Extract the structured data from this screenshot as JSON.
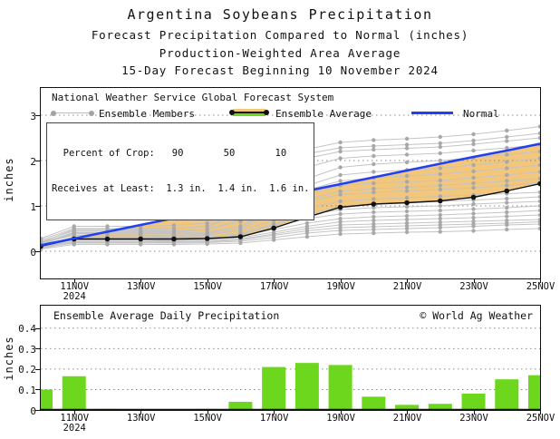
{
  "header": {
    "title1": "Argentina Soybeans Precipitation",
    "title2": "Forecast Precipitation Compared to Normal (inches)",
    "title3": "Production-Weighted Area Average",
    "title4": "15-Day Forecast Beginning 10 November 2024"
  },
  "main_chart": {
    "source_line": "National Weather Service Global Forecast System",
    "legend": {
      "members_label": "Ensemble Members",
      "average_label": "Ensemble Average",
      "normal_label": "Normal"
    },
    "crop_box": {
      "line1": "  Percent of Crop:   90       50       10",
      "line2": "Receives at Least:  1.3 in.  1.4 in.  1.6 in."
    },
    "ylabel": "inches"
  },
  "footer_chart": {
    "title": "Ensemble Average Daily Precipitation",
    "copyright": "© World Ag Weather",
    "ylabel": "inches"
  },
  "colors": {
    "band_fill": "#F3C77B",
    "bar_green": "#6CD71D",
    "normal_blue": "#2340EE",
    "member_line": "#c4c4c4",
    "member_dot": "#a8a8a8",
    "grid": "#8a8a8a",
    "ink": "#111111"
  },
  "chart_data": [
    {
      "type": "line",
      "x_days": [
        "10NOV",
        "11NOV",
        "12NOV",
        "13NOV",
        "14NOV",
        "15NOV",
        "16NOV",
        "17NOV",
        "18NOV",
        "19NOV",
        "20NOV",
        "21NOV",
        "22NOV",
        "23NOV",
        "24NOV",
        "25NOV"
      ],
      "x_tick_days": [
        1,
        3,
        5,
        7,
        9,
        11,
        13,
        15
      ],
      "x_tick_labels": [
        "11NOV",
        "13NOV",
        "15NOV",
        "17NOV",
        "19NOV",
        "21NOV",
        "23NOV",
        "25NOV"
      ],
      "year_label": "2024",
      "ylabel": "inches",
      "ylim": [
        -0.6,
        3.6
      ],
      "yticks": [
        0,
        1,
        2,
        3
      ],
      "grid": true,
      "legend_position": "top-inside",
      "series": [
        {
          "name": "Ensemble Average",
          "values": [
            0.11,
            0.27,
            0.27,
            0.27,
            0.27,
            0.28,
            0.32,
            0.51,
            0.75,
            0.97,
            1.04,
            1.07,
            1.11,
            1.19,
            1.33,
            1.49
          ]
        },
        {
          "name": "Normal",
          "values": [
            0.13,
            0.28,
            0.43,
            0.58,
            0.73,
            0.88,
            1.03,
            1.18,
            1.33,
            1.48,
            1.63,
            1.78,
            1.93,
            2.08,
            2.22,
            2.37
          ]
        }
      ],
      "members": [
        [
          0.05,
          0.15,
          0.15,
          0.15,
          0.15,
          0.16,
          0.18,
          0.25,
          0.32,
          0.38,
          0.4,
          0.42,
          0.43,
          0.45,
          0.48,
          0.5
        ],
        [
          0.08,
          0.18,
          0.18,
          0.18,
          0.18,
          0.19,
          0.22,
          0.3,
          0.4,
          0.46,
          0.48,
          0.5,
          0.52,
          0.55,
          0.58,
          0.6
        ],
        [
          0.06,
          0.2,
          0.2,
          0.2,
          0.2,
          0.21,
          0.25,
          0.35,
          0.45,
          0.52,
          0.54,
          0.56,
          0.58,
          0.6,
          0.62,
          0.65
        ],
        [
          0.1,
          0.22,
          0.22,
          0.22,
          0.22,
          0.23,
          0.27,
          0.38,
          0.5,
          0.58,
          0.6,
          0.62,
          0.64,
          0.66,
          0.68,
          0.7
        ],
        [
          0.12,
          0.25,
          0.25,
          0.25,
          0.25,
          0.26,
          0.3,
          0.42,
          0.55,
          0.65,
          0.68,
          0.7,
          0.72,
          0.74,
          0.77,
          0.8
        ],
        [
          0.1,
          0.28,
          0.28,
          0.28,
          0.28,
          0.29,
          0.34,
          0.48,
          0.62,
          0.72,
          0.76,
          0.78,
          0.8,
          0.83,
          0.86,
          0.9
        ],
        [
          0.15,
          0.3,
          0.3,
          0.3,
          0.3,
          0.32,
          0.38,
          0.55,
          0.72,
          0.82,
          0.86,
          0.88,
          0.9,
          0.93,
          0.96,
          1.0
        ],
        [
          0.12,
          0.26,
          0.26,
          0.26,
          0.28,
          0.3,
          0.4,
          0.6,
          0.8,
          0.92,
          0.96,
          0.98,
          1.0,
          1.04,
          1.07,
          1.1
        ],
        [
          0.08,
          0.22,
          0.22,
          0.22,
          0.24,
          0.26,
          0.36,
          0.58,
          0.82,
          0.98,
          1.04,
          1.07,
          1.1,
          1.13,
          1.16,
          1.2
        ],
        [
          0.18,
          0.35,
          0.35,
          0.35,
          0.35,
          0.37,
          0.45,
          0.68,
          0.95,
          1.1,
          1.15,
          1.18,
          1.21,
          1.24,
          1.27,
          1.3
        ],
        [
          0.1,
          0.3,
          0.3,
          0.3,
          0.32,
          0.35,
          0.5,
          0.8,
          1.1,
          1.25,
          1.3,
          1.33,
          1.36,
          1.4,
          1.45,
          1.5
        ],
        [
          0.2,
          0.4,
          0.4,
          0.4,
          0.4,
          0.42,
          0.55,
          0.85,
          1.15,
          1.32,
          1.38,
          1.41,
          1.45,
          1.5,
          1.55,
          1.6
        ],
        [
          0.15,
          0.38,
          0.38,
          0.38,
          0.38,
          0.4,
          0.55,
          0.9,
          1.25,
          1.45,
          1.5,
          1.53,
          1.56,
          1.62,
          1.68,
          1.75
        ],
        [
          0.1,
          0.32,
          0.32,
          0.32,
          0.34,
          0.38,
          0.55,
          0.95,
          1.35,
          1.55,
          1.62,
          1.66,
          1.7,
          1.76,
          1.83,
          1.9
        ],
        [
          0.22,
          0.45,
          0.45,
          0.45,
          0.45,
          0.48,
          0.65,
          1.05,
          1.45,
          1.68,
          1.75,
          1.79,
          1.83,
          1.9,
          1.97,
          2.05
        ],
        [
          0.18,
          0.42,
          0.42,
          0.42,
          0.44,
          0.48,
          0.7,
          1.15,
          1.6,
          1.85,
          1.92,
          1.96,
          2.0,
          2.06,
          2.13,
          2.2
        ],
        [
          0.25,
          0.5,
          0.5,
          0.5,
          0.5,
          0.55,
          0.8,
          1.35,
          1.85,
          2.05,
          2.1,
          2.13,
          2.16,
          2.22,
          2.28,
          2.35
        ],
        [
          0.2,
          0.48,
          0.48,
          0.48,
          0.5,
          0.55,
          0.9,
          1.6,
          2.05,
          2.2,
          2.24,
          2.27,
          2.3,
          2.36,
          2.43,
          2.5
        ],
        [
          0.15,
          0.4,
          0.4,
          0.4,
          0.42,
          0.48,
          1.0,
          1.9,
          2.15,
          2.28,
          2.32,
          2.35,
          2.38,
          2.44,
          2.52,
          2.6
        ],
        [
          0.28,
          0.55,
          0.55,
          0.55,
          0.57,
          0.62,
          1.1,
          2.0,
          2.25,
          2.4,
          2.45,
          2.48,
          2.52,
          2.58,
          2.66,
          2.75
        ]
      ]
    },
    {
      "type": "bar",
      "title": "Ensemble Average Daily Precipitation",
      "categories": [
        "10NOV",
        "11NOV",
        "12NOV",
        "13NOV",
        "14NOV",
        "15NOV",
        "16NOV",
        "17NOV",
        "18NOV",
        "19NOV",
        "20NOV",
        "21NOV",
        "22NOV",
        "23NOV",
        "24NOV",
        "25NOV"
      ],
      "values": [
        0.1,
        0.165,
        0.005,
        0.002,
        0.002,
        0.005,
        0.04,
        0.21,
        0.23,
        0.22,
        0.065,
        0.025,
        0.03,
        0.08,
        0.15,
        0.17
      ],
      "x_tick_days": [
        1,
        3,
        5,
        7,
        9,
        11,
        13,
        15
      ],
      "x_tick_labels": [
        "11NOV",
        "13NOV",
        "15NOV",
        "17NOV",
        "19NOV",
        "21NOV",
        "23NOV",
        "25NOV"
      ],
      "year_label": "2024",
      "ylabel": "inches",
      "ylim": [
        0,
        0.51
      ],
      "yticks": [
        0,
        0.1,
        0.2,
        0.3,
        0.4
      ],
      "grid": true
    }
  ]
}
